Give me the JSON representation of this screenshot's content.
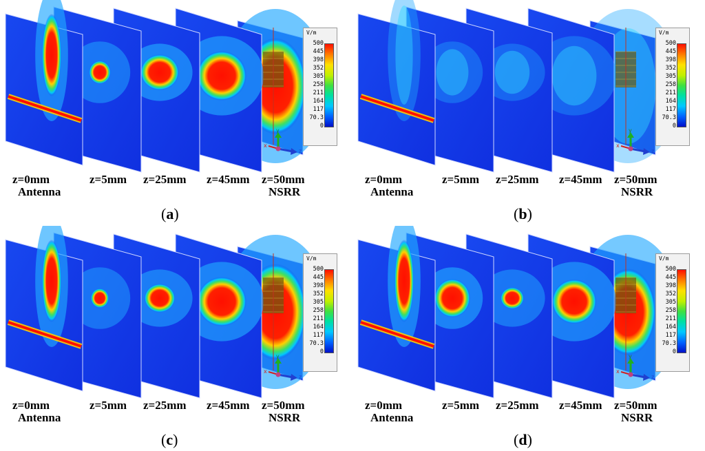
{
  "colorbar": {
    "unit": "V/m",
    "ticks": [
      "500",
      "445",
      "398",
      "352",
      "305",
      "258",
      "211",
      "164",
      "117",
      "70.3",
      "0"
    ]
  },
  "axes": {
    "x": "x",
    "y": "y",
    "z": "z"
  },
  "plane_labels": {
    "z0": "z=0mm",
    "antenna": "Antenna",
    "z5": "z=5mm",
    "z25": "z=25mm",
    "z45": "z=45mm",
    "z50": "z=50mm",
    "nsrr": "NSRR"
  },
  "panels": [
    {
      "letter": "a"
    },
    {
      "letter": "b"
    },
    {
      "letter": "c"
    },
    {
      "letter": "d"
    }
  ],
  "colors": {
    "low": "#1030e0",
    "mid": "#00d0ff",
    "high": "#ff1000"
  }
}
